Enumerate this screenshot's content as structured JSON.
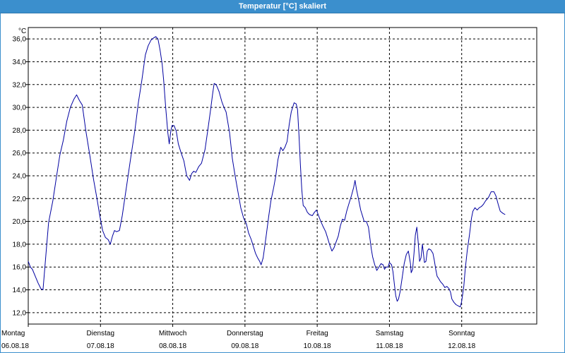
{
  "window": {
    "title": "Temperatur [°C] skaliert"
  },
  "colors": {
    "titlebar": "#3b8fcd",
    "line": "#0000a0",
    "grid": "#000000"
  },
  "chart_data": {
    "type": "line",
    "title": "Temperatur [°C] skaliert",
    "ylabel": "°C",
    "xlabel": "",
    "ylim": [
      11.0,
      37.0
    ],
    "xlim": [
      0,
      7
    ],
    "grid": true,
    "grid_style": "dashed",
    "y_ticks": [
      12.0,
      14.0,
      16.0,
      18.0,
      20.0,
      22.0,
      24.0,
      26.0,
      28.0,
      30.0,
      32.0,
      34.0,
      36.0
    ],
    "y_tick_labels": [
      "12,0",
      "14,0",
      "16,0",
      "18,0",
      "20,0",
      "22,0",
      "24,0",
      "26,0",
      "28,0",
      "30,0",
      "32,0",
      "34,0",
      "36,0"
    ],
    "x_ticks": [
      {
        "day": "Montag",
        "date": "06.08.18"
      },
      {
        "day": "Dienstag",
        "date": "07.08.18"
      },
      {
        "day": "Mittwoch",
        "date": "08.08.18"
      },
      {
        "day": "Donnerstag",
        "date": "09.08.18"
      },
      {
        "day": "Freitag",
        "date": "10.08.18"
      },
      {
        "day": "Samstag",
        "date": "11.08.18"
      },
      {
        "day": "Sonntag",
        "date": "12.08.18"
      }
    ],
    "series": [
      {
        "values": [
          [
            0.0,
            16.5
          ],
          [
            0.029,
            16.0
          ],
          [
            0.058,
            15.8
          ],
          [
            0.097,
            15.2
          ],
          [
            0.136,
            14.6
          ],
          [
            0.175,
            14.1
          ],
          [
            0.204,
            14.0
          ],
          [
            0.243,
            17.0
          ],
          [
            0.282,
            19.9
          ],
          [
            0.34,
            21.8
          ],
          [
            0.388,
            23.8
          ],
          [
            0.437,
            25.8
          ],
          [
            0.485,
            27.1
          ],
          [
            0.534,
            28.8
          ],
          [
            0.583,
            30.0
          ],
          [
            0.631,
            30.7
          ],
          [
            0.67,
            31.1
          ],
          [
            0.709,
            30.6
          ],
          [
            0.748,
            30.2
          ],
          [
            0.796,
            28.0
          ],
          [
            0.854,
            25.7
          ],
          [
            0.903,
            23.7
          ],
          [
            0.951,
            22.0
          ],
          [
            0.99,
            20.5
          ],
          [
            1.029,
            19.2
          ],
          [
            1.068,
            18.6
          ],
          [
            1.107,
            18.4
          ],
          [
            1.136,
            18.0
          ],
          [
            1.165,
            18.7
          ],
          [
            1.194,
            19.2
          ],
          [
            1.223,
            19.1
          ],
          [
            1.262,
            19.2
          ],
          [
            1.301,
            20.5
          ],
          [
            1.359,
            23.0
          ],
          [
            1.417,
            25.5
          ],
          [
            1.476,
            28.0
          ],
          [
            1.524,
            30.4
          ],
          [
            1.573,
            32.4
          ],
          [
            1.621,
            34.6
          ],
          [
            1.66,
            35.4
          ],
          [
            1.699,
            35.9
          ],
          [
            1.738,
            36.1
          ],
          [
            1.767,
            36.2
          ],
          [
            1.796,
            36.0
          ],
          [
            1.825,
            35.0
          ],
          [
            1.854,
            33.8
          ],
          [
            1.874,
            32.4
          ],
          [
            1.903,
            30.0
          ],
          [
            1.932,
            27.8
          ],
          [
            1.951,
            26.8
          ],
          [
            1.971,
            27.8
          ],
          [
            1.99,
            28.4
          ],
          [
            2.019,
            28.4
          ],
          [
            2.049,
            27.9
          ],
          [
            2.078,
            26.8
          ],
          [
            2.117,
            26.0
          ],
          [
            2.155,
            25.3
          ],
          [
            2.175,
            24.6
          ],
          [
            2.194,
            24.0
          ],
          [
            2.233,
            23.6
          ],
          [
            2.262,
            24.2
          ],
          [
            2.291,
            24.4
          ],
          [
            2.32,
            24.3
          ],
          [
            2.359,
            24.8
          ],
          [
            2.398,
            25.1
          ],
          [
            2.447,
            26.3
          ],
          [
            2.485,
            28.0
          ],
          [
            2.524,
            29.8
          ],
          [
            2.553,
            31.2
          ],
          [
            2.573,
            32.1
          ],
          [
            2.602,
            32.0
          ],
          [
            2.641,
            31.4
          ],
          [
            2.68,
            30.5
          ],
          [
            2.709,
            30.0
          ],
          [
            2.738,
            29.6
          ],
          [
            2.786,
            27.8
          ],
          [
            2.825,
            25.5
          ],
          [
            2.864,
            24.0
          ],
          [
            2.903,
            22.6
          ],
          [
            2.942,
            21.2
          ],
          [
            2.981,
            20.3
          ],
          [
            3.019,
            19.8
          ],
          [
            3.049,
            19.0
          ],
          [
            3.087,
            18.4
          ],
          [
            3.117,
            17.8
          ],
          [
            3.146,
            17.2
          ],
          [
            3.175,
            16.8
          ],
          [
            3.204,
            16.5
          ],
          [
            3.223,
            16.2
          ],
          [
            3.252,
            16.8
          ],
          [
            3.291,
            18.6
          ],
          [
            3.33,
            20.5
          ],
          [
            3.359,
            21.8
          ],
          [
            3.398,
            23.0
          ],
          [
            3.427,
            24.0
          ],
          [
            3.456,
            25.4
          ],
          [
            3.495,
            26.5
          ],
          [
            3.524,
            26.2
          ],
          [
            3.553,
            26.5
          ],
          [
            3.583,
            27.0
          ],
          [
            3.612,
            28.5
          ],
          [
            3.641,
            29.6
          ],
          [
            3.68,
            30.4
          ],
          [
            3.709,
            30.3
          ],
          [
            3.728,
            29.8
          ],
          [
            3.748,
            27.5
          ],
          [
            3.767,
            25.0
          ],
          [
            3.786,
            22.8
          ],
          [
            3.806,
            21.4
          ],
          [
            3.835,
            21.2
          ],
          [
            3.864,
            20.8
          ],
          [
            3.893,
            20.6
          ],
          [
            3.932,
            20.5
          ],
          [
            3.961,
            20.8
          ],
          [
            3.99,
            21.0
          ],
          [
            4.019,
            20.5
          ],
          [
            4.049,
            20.0
          ],
          [
            4.078,
            19.6
          ],
          [
            4.117,
            19.1
          ],
          [
            4.146,
            18.5
          ],
          [
            4.175,
            17.9
          ],
          [
            4.204,
            17.4
          ],
          [
            4.233,
            17.7
          ],
          [
            4.262,
            18.2
          ],
          [
            4.291,
            18.7
          ],
          [
            4.32,
            19.6
          ],
          [
            4.35,
            20.2
          ],
          [
            4.379,
            20.1
          ],
          [
            4.408,
            20.9
          ],
          [
            4.437,
            21.5
          ],
          [
            4.476,
            22.3
          ],
          [
            4.505,
            23.0
          ],
          [
            4.524,
            23.6
          ],
          [
            4.544,
            22.8
          ],
          [
            4.573,
            21.9
          ],
          [
            4.602,
            21.0
          ],
          [
            4.631,
            20.4
          ],
          [
            4.65,
            20.0
          ],
          [
            4.68,
            20.0
          ],
          [
            4.709,
            19.5
          ],
          [
            4.728,
            18.6
          ],
          [
            4.748,
            17.6
          ],
          [
            4.767,
            16.9
          ],
          [
            4.796,
            16.2
          ],
          [
            4.825,
            15.7
          ],
          [
            4.854,
            16.0
          ],
          [
            4.883,
            16.3
          ],
          [
            4.912,
            16.2
          ],
          [
            4.932,
            15.8
          ],
          [
            4.951,
            16.0
          ],
          [
            4.981,
            16.0
          ],
          [
            5.0,
            16.4
          ],
          [
            5.029,
            16.2
          ],
          [
            5.049,
            15.6
          ],
          [
            5.068,
            14.5
          ],
          [
            5.087,
            13.5
          ],
          [
            5.107,
            13.0
          ],
          [
            5.126,
            13.2
          ],
          [
            5.146,
            13.8
          ],
          [
            5.175,
            15.0
          ],
          [
            5.204,
            16.3
          ],
          [
            5.233,
            17.1
          ],
          [
            5.262,
            17.4
          ],
          [
            5.291,
            16.3
          ],
          [
            5.301,
            15.5
          ],
          [
            5.32,
            15.8
          ],
          [
            5.34,
            17.2
          ],
          [
            5.359,
            18.8
          ],
          [
            5.379,
            19.5
          ],
          [
            5.398,
            18.2
          ],
          [
            5.417,
            16.5
          ],
          [
            5.437,
            16.8
          ],
          [
            5.456,
            18.0
          ],
          [
            5.485,
            16.4
          ],
          [
            5.505,
            16.5
          ],
          [
            5.524,
            17.4
          ],
          [
            5.544,
            17.6
          ],
          [
            5.573,
            17.5
          ],
          [
            5.602,
            17.2
          ],
          [
            5.621,
            16.6
          ],
          [
            5.641,
            15.8
          ],
          [
            5.66,
            15.2
          ],
          [
            5.68,
            15.0
          ],
          [
            5.709,
            14.7
          ],
          [
            5.738,
            14.5
          ],
          [
            5.767,
            14.2
          ],
          [
            5.796,
            14.3
          ],
          [
            5.825,
            14.1
          ],
          [
            5.845,
            13.8
          ],
          [
            5.864,
            13.2
          ],
          [
            5.893,
            12.9
          ],
          [
            5.922,
            12.7
          ],
          [
            5.951,
            12.6
          ],
          [
            5.981,
            12.5
          ],
          [
            6.0,
            13.0
          ],
          [
            6.029,
            14.3
          ],
          [
            6.049,
            15.8
          ],
          [
            6.078,
            17.5
          ],
          [
            6.107,
            18.8
          ],
          [
            6.136,
            20.3
          ],
          [
            6.155,
            20.9
          ],
          [
            6.184,
            21.2
          ],
          [
            6.214,
            21.0
          ],
          [
            6.243,
            21.2
          ],
          [
            6.272,
            21.3
          ],
          [
            6.301,
            21.5
          ],
          [
            6.33,
            21.8
          ],
          [
            6.359,
            22.0
          ],
          [
            6.379,
            22.2
          ],
          [
            6.408,
            22.6
          ],
          [
            6.447,
            22.6
          ],
          [
            6.476,
            22.2
          ],
          [
            6.505,
            21.5
          ],
          [
            6.534,
            20.9
          ],
          [
            6.573,
            20.7
          ],
          [
            6.602,
            20.6
          ]
        ]
      }
    ]
  }
}
